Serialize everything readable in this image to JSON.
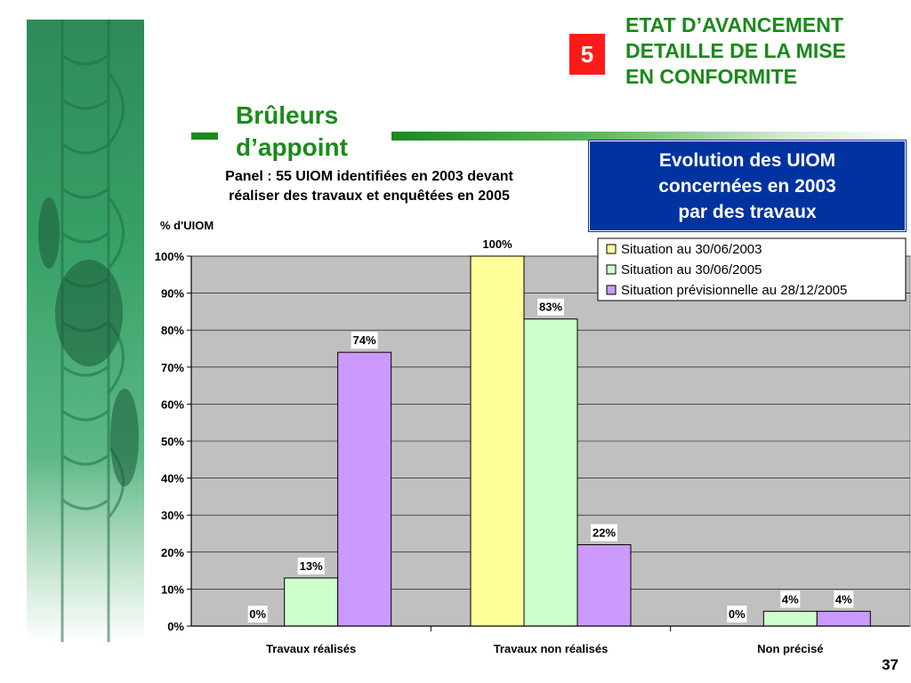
{
  "header": {
    "badge_number": "5",
    "title": "ETAT D’AVANCEMENT\nDETAILLE DE LA MISE\nEN CONFORMITE"
  },
  "section_title": "Brûleurs\nd’appoint",
  "panel_text": "Panel : 55 UIOM identifiées en 2003 devant\nréaliser des travaux et enquêtées en 2005",
  "info_box": "Evolution des UIOM\nconcernées en 2003\npar des travaux",
  "page_number": "37",
  "colors": {
    "accent_green": "#1a8a1a",
    "badge_red": "#ff1a1a",
    "box_blue": "#0033a0",
    "plot_bg": "#c0c0c0"
  },
  "chart_data": {
    "type": "bar",
    "ylabel": "% d'UIOM",
    "ylim": [
      0,
      100
    ],
    "yticks": [
      "0%",
      "10%",
      "20%",
      "30%",
      "40%",
      "50%",
      "60%",
      "70%",
      "80%",
      "90%",
      "100%"
    ],
    "categories": [
      "Travaux réalisés",
      "Travaux non réalisés",
      "Non précisé"
    ],
    "legend_position": "top-right",
    "series": [
      {
        "name": "Situation au 30/06/2003",
        "color": "#ffff99",
        "values": [
          0,
          100,
          0
        ],
        "labels": [
          "0%",
          "100%",
          "0%"
        ]
      },
      {
        "name": "Situation au 30/06/2005",
        "color": "#ccffcc",
        "values": [
          13,
          83,
          4
        ],
        "labels": [
          "13%",
          "83%",
          "4%"
        ]
      },
      {
        "name": "Situation prévisionnelle au 28/12/2005",
        "color": "#cc99ff",
        "values": [
          74,
          22,
          4
        ],
        "labels": [
          "74%",
          "22%",
          "4%"
        ]
      }
    ]
  }
}
